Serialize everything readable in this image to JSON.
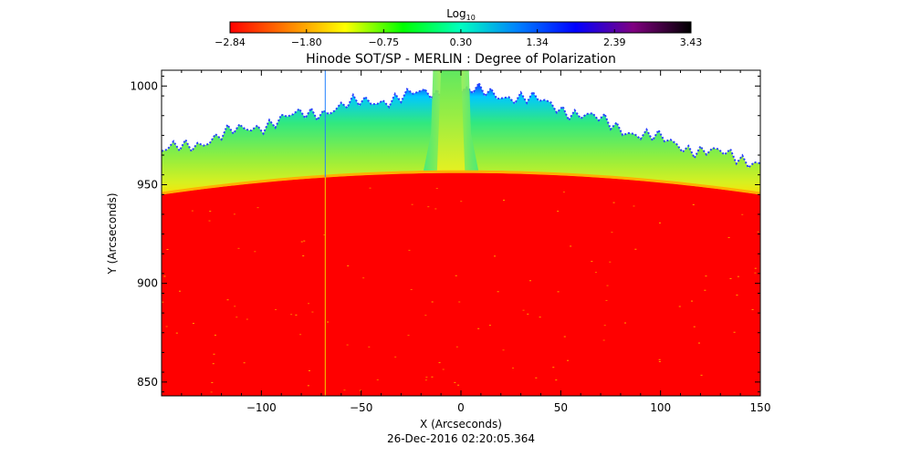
{
  "chart_data": {
    "type": "heatmap",
    "title": "Hinode SOT/SP - MERLIN : Degree of Polarization",
    "xlabel": "X (Arcseconds)",
    "ylabel": "Y (Arcseconds)",
    "xlim": [
      -150,
      150
    ],
    "ylim": [
      843,
      1008
    ],
    "x_ticks": [
      -100,
      -50,
      0,
      50,
      100,
      150
    ],
    "x_tick_labels": [
      "−100",
      "−50",
      "0",
      "50",
      "100",
      "150"
    ],
    "y_ticks": [
      850,
      900,
      950,
      1000
    ],
    "y_tick_labels": [
      "850",
      "900",
      "950",
      "1000"
    ],
    "colorbar": {
      "label_base": "Log",
      "label_sub": "10",
      "scale": "log10",
      "range": [
        -2.84,
        3.43
      ],
      "ticks": [
        -2.84,
        -1.8,
        -0.75,
        0.3,
        1.34,
        2.39,
        3.43
      ],
      "tick_labels": [
        "−2.84",
        "−1.80",
        "−0.75",
        "0.30",
        "1.34",
        "2.39",
        "3.43"
      ],
      "colormap": [
        "#ff0000",
        "#ff8000",
        "#ffff00",
        "#00ff00",
        "#00ffc0",
        "#0080ff",
        "#0000ff",
        "#800080",
        "#000000"
      ]
    },
    "features": {
      "limb_y_at_center": 956,
      "limb_y_at_edges": 945,
      "jet_x_range": [
        -13,
        3
      ],
      "slit_x": -68
    },
    "colors": {
      "disk": "#ff0000",
      "limb": "#ffd700",
      "off_limb": "#7fe84a",
      "outer_edge": "#2060ff",
      "background": "#ffffff"
    },
    "date_label": "26-Dec-2016 02:20:05.364"
  }
}
